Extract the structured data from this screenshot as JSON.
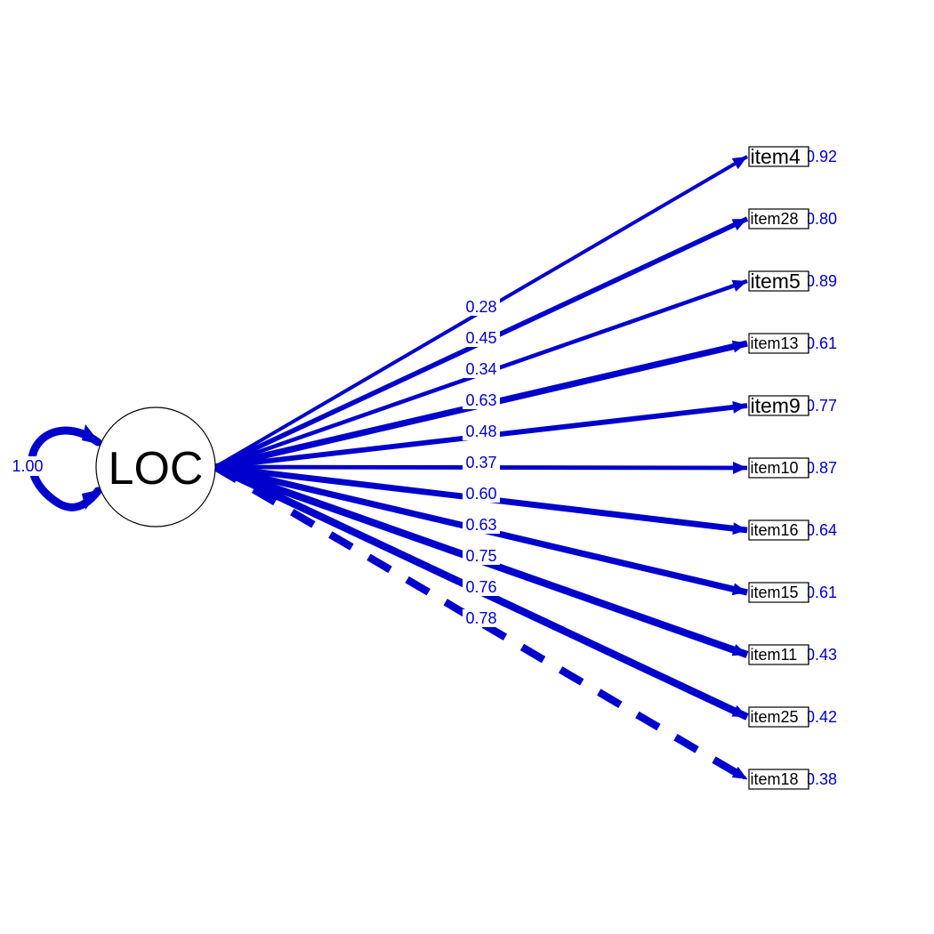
{
  "latent": {
    "name": "LOC",
    "variance": "1.00"
  },
  "colors": {
    "path": "#0000cd",
    "text": "#000000",
    "node_border": "#000000"
  },
  "indicators": [
    {
      "name": "item4",
      "loading": "0.28",
      "residual": "0.92",
      "style": "solid"
    },
    {
      "name": "item28",
      "loading": "0.45",
      "residual": "0.80",
      "style": "solid"
    },
    {
      "name": "item5",
      "loading": "0.34",
      "residual": "0.89",
      "style": "solid"
    },
    {
      "name": "item13",
      "loading": "0.63",
      "residual": "0.61",
      "style": "solid"
    },
    {
      "name": "item9",
      "loading": "0.48",
      "residual": "0.77",
      "style": "solid"
    },
    {
      "name": "item10",
      "loading": "0.37",
      "residual": "0.87",
      "style": "solid"
    },
    {
      "name": "item16",
      "loading": "0.60",
      "residual": "0.64",
      "style": "solid"
    },
    {
      "name": "item15",
      "loading": "0.63",
      "residual": "0.61",
      "style": "solid"
    },
    {
      "name": "item11",
      "loading": "0.75",
      "residual": "0.43",
      "style": "solid"
    },
    {
      "name": "item25",
      "loading": "0.76",
      "residual": "0.42",
      "style": "solid"
    },
    {
      "name": "item18",
      "loading": "0.78",
      "residual": "0.38",
      "style": "dashed"
    }
  ]
}
